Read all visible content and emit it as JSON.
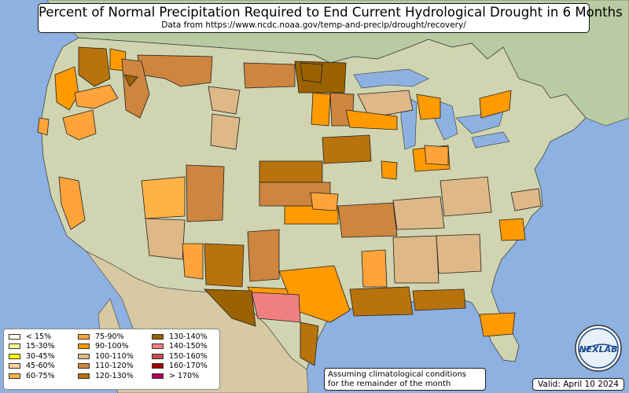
{
  "title": "Percent of Normal Precipitation Required to End Current Hydrological Drought in 6 Months",
  "subtitle": "Data from https://www.ncdc.noaa.gov/temp-and-precip/drought/recovery/",
  "note_lines": [
    "Assuming climatological conditions",
    "for the remainder of the month"
  ],
  "valid": "Valid: April 10 2024",
  "logo": {
    "text": "NEXLAB",
    "name": "nexlab-logo"
  },
  "colors": {
    "water": "#8db1e0",
    "land": "#d8d6ba",
    "canada": "#b9cba2",
    "mexico": "#d6c9a3",
    "land_lower48": "#d0d4b0"
  },
  "legend": [
    {
      "label": "< 15%",
      "color": "#ffffe6"
    },
    {
      "label": "15-30%",
      "color": "#ffff99"
    },
    {
      "label": "30-45%",
      "color": "#ffff00"
    },
    {
      "label": "45-60%",
      "color": "#fad29a"
    },
    {
      "label": "60-75%",
      "color": "#ffb347"
    },
    {
      "label": "75-90%",
      "color": "#ffa43a"
    },
    {
      "label": "90-100%",
      "color": "#ff9a00"
    },
    {
      "label": "100-110%",
      "color": "#deb887"
    },
    {
      "label": "110-120%",
      "color": "#cd853f"
    },
    {
      "label": "120-130%",
      "color": "#b8730d"
    },
    {
      "label": "130-140%",
      "color": "#9a6200"
    },
    {
      "label": "140-150%",
      "color": "#f08080"
    },
    {
      "label": "150-160%",
      "color": "#cd4a4a"
    },
    {
      "label": "160-170%",
      "color": "#a00000"
    },
    {
      "label": "> 170%",
      "color": "#b0005a"
    }
  ]
}
